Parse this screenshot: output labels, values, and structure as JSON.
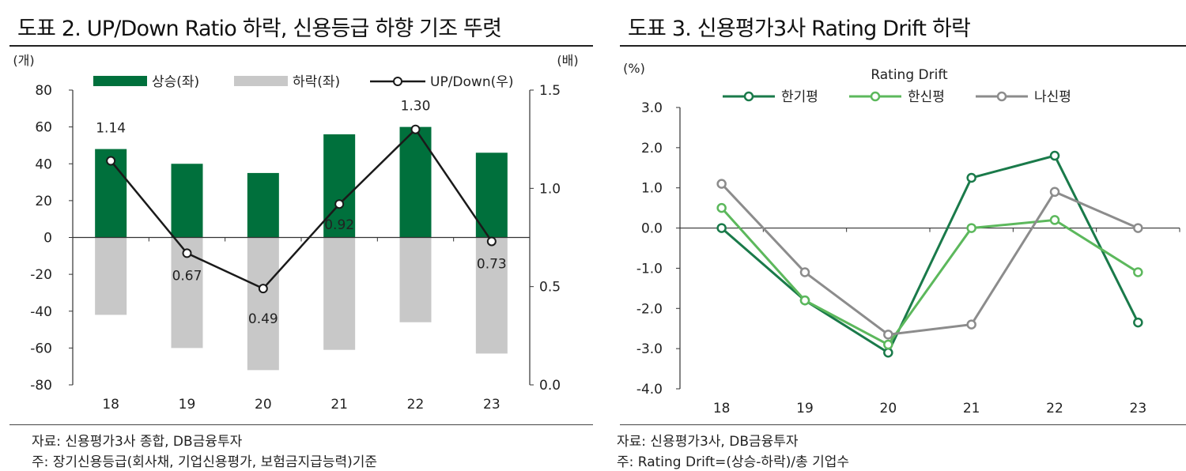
{
  "left": {
    "title": "도표 2. UP/Down Ratio 하락, 신용등급 하향 기조 뚜렷",
    "source": "자료: 신용평가3사 종합, DB금융투자",
    "note": "주: 장기신용등급(회사채, 기업신용평가, 보험금지급능력)기준",
    "colors": {
      "up": "#00703c",
      "down": "#c8c8c8",
      "ratio": "#1a1a1a"
    }
  },
  "right": {
    "title": "도표 3. 신용평가3사 Rating Drift 하락",
    "source": "자료: 신용평가3사, DB금융투자",
    "note": "주: Rating Drift=(상승-하락)/총 기업수",
    "colors": {
      "한기평": "#1a7a4a",
      "한신평": "#5cb85c",
      "나신평": "#8c8c8c"
    }
  },
  "chart_data": [
    {
      "type": "bar",
      "categories": [
        "18",
        "19",
        "20",
        "21",
        "22",
        "23"
      ],
      "series": [
        {
          "name": "상승(좌)",
          "type": "bar",
          "axis": "left",
          "values": [
            48,
            40,
            35,
            56,
            60,
            46
          ]
        },
        {
          "name": "하락(좌)",
          "type": "bar",
          "axis": "left",
          "values": [
            -42,
            -60,
            -72,
            -61,
            -46,
            -63
          ]
        },
        {
          "name": "UP/Down(우)",
          "type": "line",
          "axis": "right",
          "values": [
            1.14,
            0.67,
            0.49,
            0.92,
            1.3,
            0.73
          ],
          "labels": [
            "1.14",
            "0.67",
            "0.49",
            "0.92",
            "1.30",
            "0.73"
          ]
        }
      ],
      "y_left": {
        "unit": "(개)",
        "ylim": [
          -80,
          80
        ],
        "ticks": [
          80,
          60,
          40,
          20,
          0,
          -20,
          -40,
          -60,
          -80
        ],
        "tick_labels": [
          "80",
          "60",
          "40",
          "20",
          "0",
          "-20",
          "-40",
          "-60",
          "-80"
        ]
      },
      "y_right": {
        "unit": "(배)",
        "ylim": [
          0,
          1.5
        ],
        "ticks": [
          1.5,
          1.0,
          0.5,
          0.0
        ],
        "tick_labels": [
          "1.5",
          "1.0",
          "0.5",
          "0.0"
        ]
      },
      "grid": false,
      "legend": "top"
    },
    {
      "type": "line",
      "title": "Rating Drift",
      "categories": [
        "18",
        "19",
        "20",
        "21",
        "22",
        "23"
      ],
      "series": [
        {
          "name": "한기평",
          "values": [
            0.0,
            -1.8,
            -3.1,
            1.25,
            1.8,
            -2.35
          ]
        },
        {
          "name": "한신평",
          "values": [
            0.5,
            -1.8,
            -2.9,
            0.0,
            0.2,
            -1.1
          ]
        },
        {
          "name": "나신평",
          "values": [
            1.1,
            -1.1,
            -2.65,
            -2.4,
            0.9,
            0.0
          ]
        }
      ],
      "y": {
        "unit": "(%)",
        "ylim": [
          -4.0,
          3.0
        ],
        "ticks": [
          3.0,
          2.0,
          1.0,
          0.0,
          -1.0,
          -2.0,
          -3.0,
          -4.0
        ],
        "tick_labels": [
          "3.0",
          "2.0",
          "1.0",
          "0.0",
          "-1.0",
          "-2.0",
          "-3.0",
          "-4.0"
        ]
      },
      "grid": false,
      "legend": "top"
    }
  ]
}
